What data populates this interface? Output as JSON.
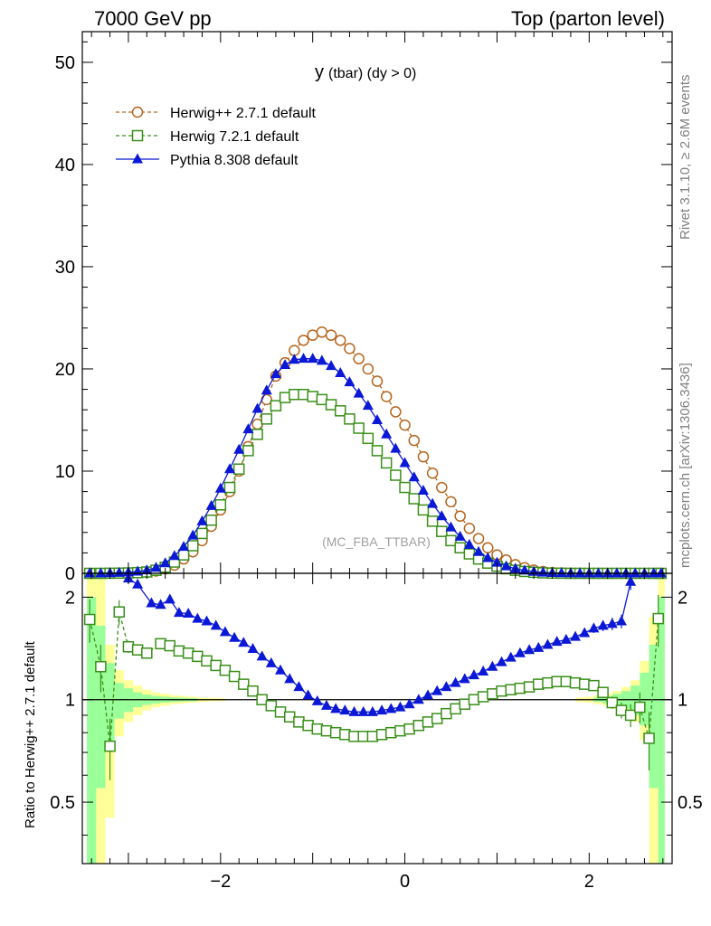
{
  "header": {
    "left_title": "7000 GeV pp",
    "right_title": "Top (parton level)"
  },
  "side_labels": {
    "rivet": "Rivet 3.1.10, ≥ 2.6M events",
    "source": "mcplots.cern.ch [arXiv:1306.3436]"
  },
  "plot": {
    "title_main": "y",
    "title_sub": "(tbar) (dy > 0)",
    "watermark": "(MC_FBA_TTBAR)",
    "ratio_ylabel": "Ratio to Herwig++ 2.7.1 default"
  },
  "colors": {
    "herwigpp": "#b5651d",
    "herwig7": "#3a8f1a",
    "pythia": "#0b18d6",
    "band_yellow": "#ffff99",
    "band_green": "#99ff99"
  },
  "chart_data": [
    {
      "type": "scatter",
      "panel": "main",
      "xlim": [
        -3.5,
        2.9
      ],
      "ylim": [
        0,
        53
      ],
      "yticks": [
        0,
        10,
        20,
        30,
        40,
        50
      ],
      "ytick_labels": [
        "0",
        "10",
        "20",
        "30",
        "40",
        "50"
      ],
      "x": [
        -3.42,
        -3.3,
        -3.2,
        -3.1,
        -3.0,
        -2.9,
        -2.8,
        -2.7,
        -2.6,
        -2.5,
        -2.4,
        -2.3,
        -2.2,
        -2.1,
        -2.0,
        -1.9,
        -1.8,
        -1.7,
        -1.6,
        -1.5,
        -1.4,
        -1.3,
        -1.2,
        -1.1,
        -1.0,
        -0.9,
        -0.8,
        -0.7,
        -0.6,
        -0.5,
        -0.4,
        -0.3,
        -0.2,
        -0.1,
        0.0,
        0.1,
        0.2,
        0.3,
        0.4,
        0.5,
        0.6,
        0.7,
        0.8,
        0.9,
        1.0,
        1.1,
        1.2,
        1.3,
        1.4,
        1.5,
        1.6,
        1.7,
        1.8,
        1.9,
        2.0,
        2.1,
        2.2,
        2.3,
        2.4,
        2.5,
        2.6,
        2.7,
        2.78
      ],
      "series": [
        {
          "name": "Herwig++ 2.7.1 default",
          "marker": "open-circle",
          "line": "dashed",
          "values": [
            0.0,
            0.0,
            0.01,
            0.02,
            0.03,
            0.06,
            0.1,
            0.22,
            0.44,
            0.8,
            1.4,
            2.1,
            3.2,
            4.6,
            6.2,
            8.0,
            10.0,
            12.4,
            14.6,
            17.0,
            19.3,
            20.6,
            21.8,
            22.8,
            23.3,
            23.6,
            23.3,
            22.8,
            22.0,
            21.0,
            20.0,
            18.8,
            17.3,
            15.8,
            14.5,
            13.0,
            11.4,
            9.8,
            8.4,
            7.0,
            5.6,
            4.4,
            3.4,
            2.5,
            1.8,
            1.3,
            0.85,
            0.55,
            0.32,
            0.18,
            0.09,
            0.04,
            0.02,
            0.01,
            0.0,
            0.0,
            0.0,
            0.0,
            0.0,
            0.0,
            0.0,
            0.0,
            0.0
          ]
        },
        {
          "name": "Herwig 7.2.1 default",
          "marker": "open-square",
          "line": "dashed",
          "values": [
            0.0,
            0.0,
            0.01,
            0.02,
            0.04,
            0.07,
            0.13,
            0.3,
            0.6,
            1.1,
            1.8,
            2.7,
            3.9,
            5.2,
            6.7,
            8.4,
            10.2,
            12.0,
            13.6,
            15.1,
            16.4,
            17.2,
            17.5,
            17.5,
            17.3,
            17.0,
            16.5,
            15.9,
            15.1,
            14.2,
            13.2,
            12.0,
            10.8,
            9.6,
            8.4,
            7.3,
            6.2,
            5.1,
            4.1,
            3.2,
            2.5,
            1.9,
            1.4,
            1.0,
            0.7,
            0.45,
            0.3,
            0.18,
            0.1,
            0.05,
            0.02,
            0.01,
            0.0,
            0.0,
            0.0,
            0.0,
            0.0,
            0.0,
            0.0,
            0.0,
            0.0,
            0.0,
            0.0
          ]
        },
        {
          "name": "Pythia 8.308 default",
          "marker": "filled-triangle",
          "line": "solid",
          "values": [
            0.0,
            0.0,
            0.02,
            0.05,
            0.1,
            0.18,
            0.3,
            0.55,
            1.0,
            1.7,
            2.6,
            3.7,
            5.1,
            6.6,
            8.3,
            10.2,
            12.1,
            14.1,
            16.1,
            17.9,
            19.5,
            20.4,
            20.9,
            21.0,
            21.0,
            20.8,
            20.3,
            19.6,
            18.7,
            17.6,
            16.4,
            15.0,
            13.6,
            12.2,
            10.8,
            9.4,
            8.1,
            6.8,
            5.6,
            4.5,
            3.6,
            2.8,
            2.1,
            1.5,
            1.05,
            0.7,
            0.45,
            0.28,
            0.16,
            0.08,
            0.04,
            0.02,
            0.01,
            0.0,
            0.0,
            0.0,
            0.0,
            0.0,
            0.0,
            0.0,
            0.0,
            0.0,
            0.0
          ]
        }
      ]
    },
    {
      "type": "scatter",
      "panel": "ratio",
      "xlim": [
        -3.5,
        2.9
      ],
      "ylim": [
        0.33,
        2.35
      ],
      "xticks": [
        -2,
        0,
        2
      ],
      "xtick_labels": [
        "−2",
        "0",
        "2"
      ],
      "yticks": [
        0.5,
        1,
        2
      ],
      "ytick_labels": [
        "0.5",
        "1",
        "2"
      ],
      "reference_line": 1,
      "band_yellow": [
        {
          "x": [
            -3.45,
            -3.35
          ],
          "range": [
            0.33,
            2.35
          ]
        },
        {
          "x": [
            -3.35,
            -3.25
          ],
          "range": [
            0.33,
            2.35
          ]
        },
        {
          "x": [
            -3.25,
            -3.15
          ],
          "range": [
            0.45,
            1.45
          ]
        },
        {
          "x": [
            -3.15,
            -3.05
          ],
          "range": [
            0.78,
            1.22
          ]
        },
        {
          "x": [
            -3.05,
            -2.95
          ],
          "range": [
            0.86,
            1.14
          ]
        },
        {
          "x": [
            -2.95,
            -2.85
          ],
          "range": [
            0.9,
            1.1
          ]
        },
        {
          "x": [
            -2.85,
            -2.75
          ],
          "range": [
            0.93,
            1.07
          ]
        },
        {
          "x": [
            -2.75,
            -2.65
          ],
          "range": [
            0.95,
            1.05
          ]
        },
        {
          "x": [
            -2.65,
            -2.55
          ],
          "range": [
            0.96,
            1.04
          ]
        },
        {
          "x": [
            -2.55,
            -2.45
          ],
          "range": [
            0.97,
            1.03
          ]
        },
        {
          "x": [
            -2.45,
            -2.35
          ],
          "range": [
            0.975,
            1.025
          ]
        },
        {
          "x": [
            -2.35,
            -2.25
          ],
          "range": [
            0.98,
            1.02
          ]
        },
        {
          "x": [
            -2.25,
            -2.15
          ],
          "range": [
            0.985,
            1.015
          ]
        },
        {
          "x": [
            -2.15,
            -2.05
          ],
          "range": [
            0.988,
            1.012
          ]
        },
        {
          "x": [
            -2.05,
            -1.95
          ],
          "range": [
            0.99,
            1.01
          ]
        },
        {
          "x": [
            1.85,
            1.95
          ],
          "range": [
            0.985,
            1.015
          ]
        },
        {
          "x": [
            1.95,
            2.05
          ],
          "range": [
            0.98,
            1.02
          ]
        },
        {
          "x": [
            2.05,
            2.15
          ],
          "range": [
            0.97,
            1.03
          ]
        },
        {
          "x": [
            2.15,
            2.25
          ],
          "range": [
            0.96,
            1.04
          ]
        },
        {
          "x": [
            2.25,
            2.35
          ],
          "range": [
            0.94,
            1.06
          ]
        },
        {
          "x": [
            2.35,
            2.45
          ],
          "range": [
            0.91,
            1.09
          ]
        },
        {
          "x": [
            2.45,
            2.55
          ],
          "range": [
            0.86,
            1.14
          ]
        },
        {
          "x": [
            2.55,
            2.65
          ],
          "range": [
            0.76,
            1.3
          ]
        },
        {
          "x": [
            2.65,
            2.75
          ],
          "range": [
            0.33,
            1.75
          ]
        },
        {
          "x": [
            2.75,
            2.82
          ],
          "range": [
            0.33,
            2.35
          ]
        }
      ],
      "band_green": [
        {
          "x": [
            -3.45,
            -3.35
          ],
          "range": [
            0.33,
            2.0
          ]
        },
        {
          "x": [
            -3.35,
            -3.25
          ],
          "range": [
            0.55,
            1.65
          ]
        },
        {
          "x": [
            -3.25,
            -3.15
          ],
          "range": [
            0.72,
            1.28
          ]
        },
        {
          "x": [
            -3.15,
            -3.05
          ],
          "range": [
            0.88,
            1.12
          ]
        },
        {
          "x": [
            -3.05,
            -2.95
          ],
          "range": [
            0.92,
            1.08
          ]
        },
        {
          "x": [
            -2.95,
            -2.85
          ],
          "range": [
            0.95,
            1.05
          ]
        },
        {
          "x": [
            -2.85,
            -2.75
          ],
          "range": [
            0.965,
            1.035
          ]
        },
        {
          "x": [
            -2.75,
            -2.65
          ],
          "range": [
            0.975,
            1.025
          ]
        },
        {
          "x": [
            -2.65,
            -2.55
          ],
          "range": [
            0.98,
            1.02
          ]
        },
        {
          "x": [
            -2.55,
            -2.45
          ],
          "range": [
            0.985,
            1.015
          ]
        },
        {
          "x": [
            -2.45,
            -2.35
          ],
          "range": [
            0.988,
            1.012
          ]
        },
        {
          "x": [
            -2.35,
            -2.25
          ],
          "range": [
            0.99,
            1.01
          ]
        },
        {
          "x": [
            2.05,
            2.15
          ],
          "range": [
            0.985,
            1.015
          ]
        },
        {
          "x": [
            2.15,
            2.25
          ],
          "range": [
            0.975,
            1.025
          ]
        },
        {
          "x": [
            2.25,
            2.35
          ],
          "range": [
            0.96,
            1.04
          ]
        },
        {
          "x": [
            2.35,
            2.45
          ],
          "range": [
            0.94,
            1.06
          ]
        },
        {
          "x": [
            2.45,
            2.55
          ],
          "range": [
            0.9,
            1.1
          ]
        },
        {
          "x": [
            2.55,
            2.65
          ],
          "range": [
            0.84,
            1.2
          ]
        },
        {
          "x": [
            2.65,
            2.75
          ],
          "range": [
            0.55,
            1.45
          ]
        },
        {
          "x": [
            2.75,
            2.82
          ],
          "range": [
            0.33,
            2.0
          ]
        }
      ],
      "series": [
        {
          "name": "Herwig 7.2.1 default",
          "marker": "open-square",
          "line": "dashed",
          "x": [
            -3.42,
            -3.3,
            -3.2,
            -3.1,
            -3.0,
            -2.9,
            -2.8,
            -2.65,
            -2.55,
            -2.45,
            -2.35,
            -2.25,
            -2.15,
            -2.05,
            -1.95,
            -1.85,
            -1.75,
            -1.65,
            -1.55,
            -1.45,
            -1.35,
            -1.25,
            -1.15,
            -1.05,
            -0.95,
            -0.85,
            -0.75,
            -0.65,
            -0.55,
            -0.45,
            -0.35,
            -0.25,
            -0.15,
            -0.05,
            0.05,
            0.15,
            0.25,
            0.35,
            0.45,
            0.55,
            0.65,
            0.75,
            0.85,
            0.95,
            1.05,
            1.15,
            1.25,
            1.35,
            1.45,
            1.55,
            1.65,
            1.75,
            1.85,
            1.95,
            2.05,
            2.15,
            2.25,
            2.35,
            2.45,
            2.55,
            2.65,
            2.75
          ],
          "values": [
            1.72,
            1.25,
            0.73,
            1.81,
            1.43,
            1.4,
            1.37,
            1.46,
            1.44,
            1.39,
            1.37,
            1.34,
            1.3,
            1.26,
            1.22,
            1.17,
            1.11,
            1.06,
            1.0,
            0.96,
            0.92,
            0.89,
            0.86,
            0.84,
            0.82,
            0.81,
            0.8,
            0.79,
            0.78,
            0.78,
            0.78,
            0.79,
            0.8,
            0.81,
            0.82,
            0.84,
            0.86,
            0.88,
            0.91,
            0.94,
            0.97,
            1.0,
            1.02,
            1.04,
            1.06,
            1.07,
            1.08,
            1.09,
            1.11,
            1.12,
            1.13,
            1.13,
            1.12,
            1.11,
            1.1,
            1.05,
            0.98,
            0.93,
            0.9,
            0.95,
            0.77,
            1.73
          ],
          "errors": [
            0.25,
            0.2,
            0.15,
            0.15,
            0.06,
            0.04,
            0.03,
            0.02,
            0.02,
            0.02,
            0.01,
            0.01,
            0.01,
            0.01,
            0.01,
            0.01,
            0.01,
            0.01,
            0.01,
            0.01,
            0.01,
            0.01,
            0.01,
            0.01,
            0.01,
            0.01,
            0.01,
            0.01,
            0.01,
            0.01,
            0.01,
            0.01,
            0.01,
            0.01,
            0.01,
            0.01,
            0.01,
            0.01,
            0.01,
            0.01,
            0.01,
            0.01,
            0.01,
            0.01,
            0.01,
            0.01,
            0.01,
            0.01,
            0.01,
            0.01,
            0.01,
            0.01,
            0.01,
            0.02,
            0.02,
            0.03,
            0.04,
            0.05,
            0.07,
            0.1,
            0.15,
            0.3
          ]
        },
        {
          "name": "Pythia 8.308 default",
          "marker": "filled-triangle",
          "line": "solid",
          "x": [
            -3.0,
            -2.9,
            -2.75,
            -2.65,
            -2.55,
            -2.45,
            -2.35,
            -2.25,
            -2.15,
            -2.05,
            -1.95,
            -1.85,
            -1.75,
            -1.65,
            -1.55,
            -1.45,
            -1.35,
            -1.25,
            -1.15,
            -1.05,
            -0.95,
            -0.85,
            -0.75,
            -0.65,
            -0.55,
            -0.45,
            -0.35,
            -0.25,
            -0.15,
            -0.05,
            0.05,
            0.15,
            0.25,
            0.35,
            0.45,
            0.55,
            0.65,
            0.75,
            0.85,
            0.95,
            1.05,
            1.15,
            1.25,
            1.35,
            1.45,
            1.55,
            1.65,
            1.75,
            1.85,
            1.95,
            2.05,
            2.15,
            2.25,
            2.35,
            2.45
          ],
          "values": [
            2.27,
            2.18,
            1.92,
            1.9,
            1.97,
            1.8,
            1.79,
            1.73,
            1.7,
            1.65,
            1.58,
            1.52,
            1.47,
            1.41,
            1.34,
            1.28,
            1.22,
            1.15,
            1.09,
            1.03,
            0.99,
            0.96,
            0.94,
            0.93,
            0.92,
            0.92,
            0.92,
            0.93,
            0.94,
            0.95,
            0.97,
            1.0,
            1.03,
            1.06,
            1.09,
            1.12,
            1.15,
            1.18,
            1.21,
            1.25,
            1.29,
            1.33,
            1.37,
            1.4,
            1.42,
            1.45,
            1.48,
            1.5,
            1.53,
            1.57,
            1.62,
            1.65,
            1.67,
            1.7,
            2.22
          ],
          "errors": [
            0.07,
            0.05,
            0.04,
            0.03,
            0.03,
            0.02,
            0.02,
            0.02,
            0.02,
            0.01,
            0.01,
            0.01,
            0.01,
            0.01,
            0.01,
            0.01,
            0.01,
            0.01,
            0.01,
            0.01,
            0.01,
            0.01,
            0.01,
            0.01,
            0.01,
            0.01,
            0.01,
            0.01,
            0.01,
            0.01,
            0.01,
            0.01,
            0.01,
            0.01,
            0.01,
            0.01,
            0.01,
            0.01,
            0.01,
            0.01,
            0.01,
            0.01,
            0.01,
            0.01,
            0.02,
            0.02,
            0.02,
            0.03,
            0.03,
            0.04,
            0.05,
            0.06,
            0.07,
            0.08,
            0.12
          ]
        }
      ]
    }
  ]
}
